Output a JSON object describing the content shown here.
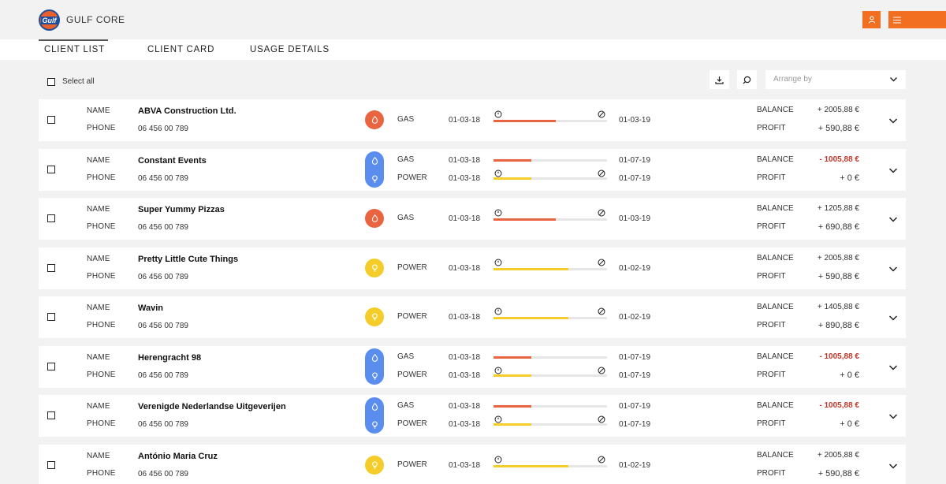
{
  "header": {
    "logo_text": "Gulf",
    "brand": "GULF CORE",
    "accent": "#f26f21"
  },
  "tabs": [
    {
      "label": "CLIENT LIST",
      "active": true
    },
    {
      "label": "CLIENT CARD",
      "active": false
    },
    {
      "label": "USAGE DETAILS",
      "active": false
    }
  ],
  "toolbar": {
    "select_all_label": "Select all",
    "download_icon": "download-icon",
    "search_icon": "search-icon",
    "arrange_placeholder": "Arrange by"
  },
  "labels": {
    "name": "NAME",
    "phone": "PHONE",
    "balance": "BALANCE",
    "profit": "PROFIT"
  },
  "colors": {
    "gas": "#ea6440",
    "power": "#f4cd2a",
    "both": "#5b8def",
    "negative": "#c0392b"
  },
  "clients": [
    {
      "name": "ABVA Construction Ltd.",
      "phone": "06 456 00 789",
      "kind": "gas",
      "usages": [
        {
          "type": "GAS",
          "start": "01-03-18",
          "end": "01-03-19",
          "progress": 0.55
        }
      ],
      "balance": "+ 2005,88 €",
      "balance_negative": false,
      "profit": "+ 590,88 €"
    },
    {
      "name": "Constant Events",
      "phone": "06 456 00 789",
      "kind": "both",
      "usages": [
        {
          "type": "GAS",
          "start": "01-03-18",
          "end": "01-07-19",
          "progress": 0.33
        },
        {
          "type": "POWER",
          "start": "01-03-18",
          "end": "01-07-19",
          "progress": 0.33
        }
      ],
      "balance": "- 1005,88 €",
      "balance_negative": true,
      "profit": "+ 0 €"
    },
    {
      "name": "Super Yummy Pizzas",
      "phone": "06 456 00 789",
      "kind": "gas",
      "usages": [
        {
          "type": "GAS",
          "start": "01-03-18",
          "end": "01-03-19",
          "progress": 0.55
        }
      ],
      "balance": "+ 1205,88 €",
      "balance_negative": false,
      "profit": "+ 690,88 €"
    },
    {
      "name": "Pretty Little Cute Things",
      "phone": "06 456 00 789",
      "kind": "power",
      "usages": [
        {
          "type": "POWER",
          "start": "01-03-18",
          "end": "01-02-19",
          "progress": 0.66
        }
      ],
      "balance": "+ 2005,88 €",
      "balance_negative": false,
      "profit": "+ 590,88 €"
    },
    {
      "name": "Wavin",
      "phone": "06 456 00 789",
      "kind": "power",
      "usages": [
        {
          "type": "POWER",
          "start": "01-03-18",
          "end": "01-02-19",
          "progress": 0.66
        }
      ],
      "balance": "+ 1405,88 €",
      "balance_negative": false,
      "profit": "+ 890,88 €"
    },
    {
      "name": "Herengracht 98",
      "phone": "06 456 00 789",
      "kind": "both",
      "usages": [
        {
          "type": "GAS",
          "start": "01-03-18",
          "end": "01-07-19",
          "progress": 0.33
        },
        {
          "type": "POWER",
          "start": "01-03-18",
          "end": "01-07-19",
          "progress": 0.33
        }
      ],
      "balance": "- 1005,88 €",
      "balance_negative": true,
      "profit": "+ 0 €"
    },
    {
      "name": "Verenigde Nederlandse Uitgeverijen",
      "phone": "06 456 00 789",
      "kind": "both",
      "usages": [
        {
          "type": "GAS",
          "start": "01-03-18",
          "end": "01-07-19",
          "progress": 0.33
        },
        {
          "type": "POWER",
          "start": "01-03-18",
          "end": "01-07-19",
          "progress": 0.33
        }
      ],
      "balance": "- 1005,88 €",
      "balance_negative": true,
      "profit": "+ 0 €"
    },
    {
      "name": "António Maria Cruz",
      "phone": "06 456 00 789",
      "kind": "power",
      "usages": [
        {
          "type": "POWER",
          "start": "01-03-18",
          "end": "01-02-19",
          "progress": 0.66
        }
      ],
      "balance": "+ 2005,88 €",
      "balance_negative": false,
      "profit": "+ 590,88 €"
    }
  ]
}
